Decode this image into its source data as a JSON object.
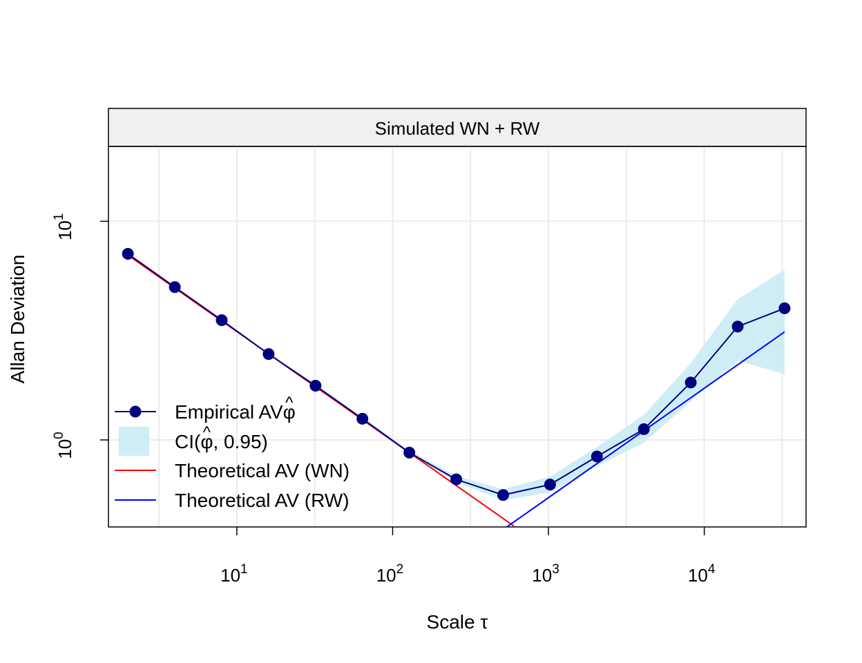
{
  "chart_data": {
    "type": "line",
    "title": "Simulated WN + RW",
    "xlabel": "Scale τ",
    "ylabel": "Allan Deviation",
    "x_scale": "log10",
    "y_scale": "log10",
    "xlim": [
      1.5,
      45000
    ],
    "ylim": [
      0.4,
      22
    ],
    "x_ticks": [
      {
        "value": 10,
        "base": "10",
        "exp": "1"
      },
      {
        "value": 100,
        "base": "10",
        "exp": "2"
      },
      {
        "value": 1000,
        "base": "10",
        "exp": "3"
      },
      {
        "value": 10000,
        "base": "10",
        "exp": "4"
      }
    ],
    "y_ticks": [
      {
        "value": 1,
        "base": "10",
        "exp": "0"
      },
      {
        "value": 10,
        "base": "10",
        "exp": "1"
      }
    ],
    "grid": true,
    "legend_position": "bottom-left",
    "colors": {
      "empirical": "#000080",
      "ci": "#cfedf5",
      "wn": "#ff0000",
      "rw": "#0000ff",
      "strip": "#f0f0f0"
    },
    "series": [
      {
        "name": "Empirical AV",
        "kind": "line-points",
        "x": [
          2,
          4,
          8,
          16,
          32,
          64,
          128,
          256,
          512,
          1024,
          2048,
          4096,
          8192,
          16384,
          32768
        ],
        "y": [
          7.1,
          5.0,
          3.53,
          2.47,
          1.77,
          1.25,
          0.875,
          0.66,
          0.56,
          0.625,
          0.84,
          1.12,
          1.83,
          3.3,
          4.0
        ]
      },
      {
        "name": "CI(φ, 0.95)",
        "kind": "band",
        "x": [
          2,
          4,
          8,
          16,
          32,
          64,
          128,
          256,
          512,
          1024,
          2048,
          4096,
          8192,
          16384,
          32768
        ],
        "lower": [
          7.05,
          4.96,
          3.5,
          2.45,
          1.75,
          1.23,
          0.86,
          0.64,
          0.53,
          0.575,
          0.76,
          0.97,
          1.5,
          2.3,
          2.0
        ],
        "upper": [
          7.15,
          5.04,
          3.56,
          2.5,
          1.79,
          1.27,
          0.895,
          0.685,
          0.595,
          0.68,
          0.93,
          1.3,
          2.25,
          4.4,
          6.0
        ]
      },
      {
        "name": "Theoretical AV (WN)",
        "kind": "line",
        "x": [
          2,
          600
        ],
        "y": [
          7.0,
          0.404
        ]
      },
      {
        "name": "Theoretical AV (RW)",
        "kind": "line",
        "x": [
          540,
          32768
        ],
        "y": [
          0.4,
          3.12
        ]
      }
    ],
    "legend": [
      {
        "label": "Empirical AV",
        "hat": "φ",
        "key": "empirical"
      },
      {
        "label": "CI(",
        "hat": "φ",
        "suffix": ", 0.95)",
        "key": "ci"
      },
      {
        "label": "Theoretical AV (WN)",
        "key": "wn"
      },
      {
        "label": "Theoretical AV (RW)",
        "key": "rw"
      }
    ]
  }
}
